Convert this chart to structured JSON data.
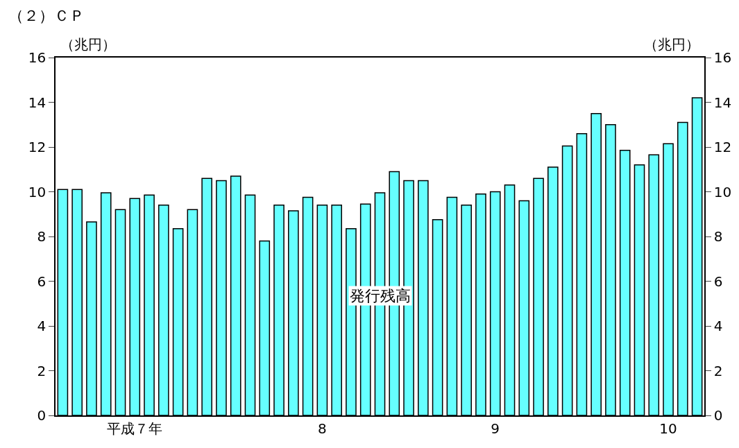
{
  "chart_data": {
    "type": "bar",
    "title": "（２）ＣＰ",
    "ylabel": "（兆円）",
    "y2label": "（兆円）",
    "annotations": [
      "発行残高"
    ],
    "categories": [
      null,
      null,
      null,
      null,
      null,
      "平成７年",
      null,
      null,
      null,
      null,
      null,
      null,
      null,
      null,
      null,
      null,
      null,
      null,
      "8",
      null,
      null,
      null,
      null,
      null,
      null,
      null,
      null,
      null,
      null,
      null,
      "9",
      null,
      null,
      null,
      null,
      null,
      null,
      null,
      null,
      null,
      null,
      null,
      "10",
      null,
      null
    ],
    "values": [
      10.1,
      10.1,
      8.65,
      9.95,
      9.2,
      9.7,
      9.85,
      9.4,
      8.35,
      9.2,
      10.6,
      10.5,
      10.7,
      9.85,
      7.8,
      9.4,
      9.15,
      9.75,
      9.4,
      9.4,
      8.35,
      9.45,
      9.95,
      10.9,
      10.5,
      10.5,
      8.75,
      9.75,
      9.4,
      9.9,
      10.0,
      10.3,
      9.6,
      10.6,
      11.1,
      12.05,
      12.6,
      13.5,
      13.0,
      11.85,
      11.2,
      11.65,
      12.15,
      13.1,
      14.2
    ],
    "color": "#66ffff",
    "ylim": [
      0,
      16
    ],
    "yticks": [
      0,
      2,
      4,
      6,
      8,
      10,
      12,
      14,
      16
    ],
    "y2lim": [
      0,
      16
    ],
    "y2ticks": [
      0,
      2,
      4,
      6,
      8,
      10,
      12,
      14,
      16
    ],
    "grid": false
  }
}
